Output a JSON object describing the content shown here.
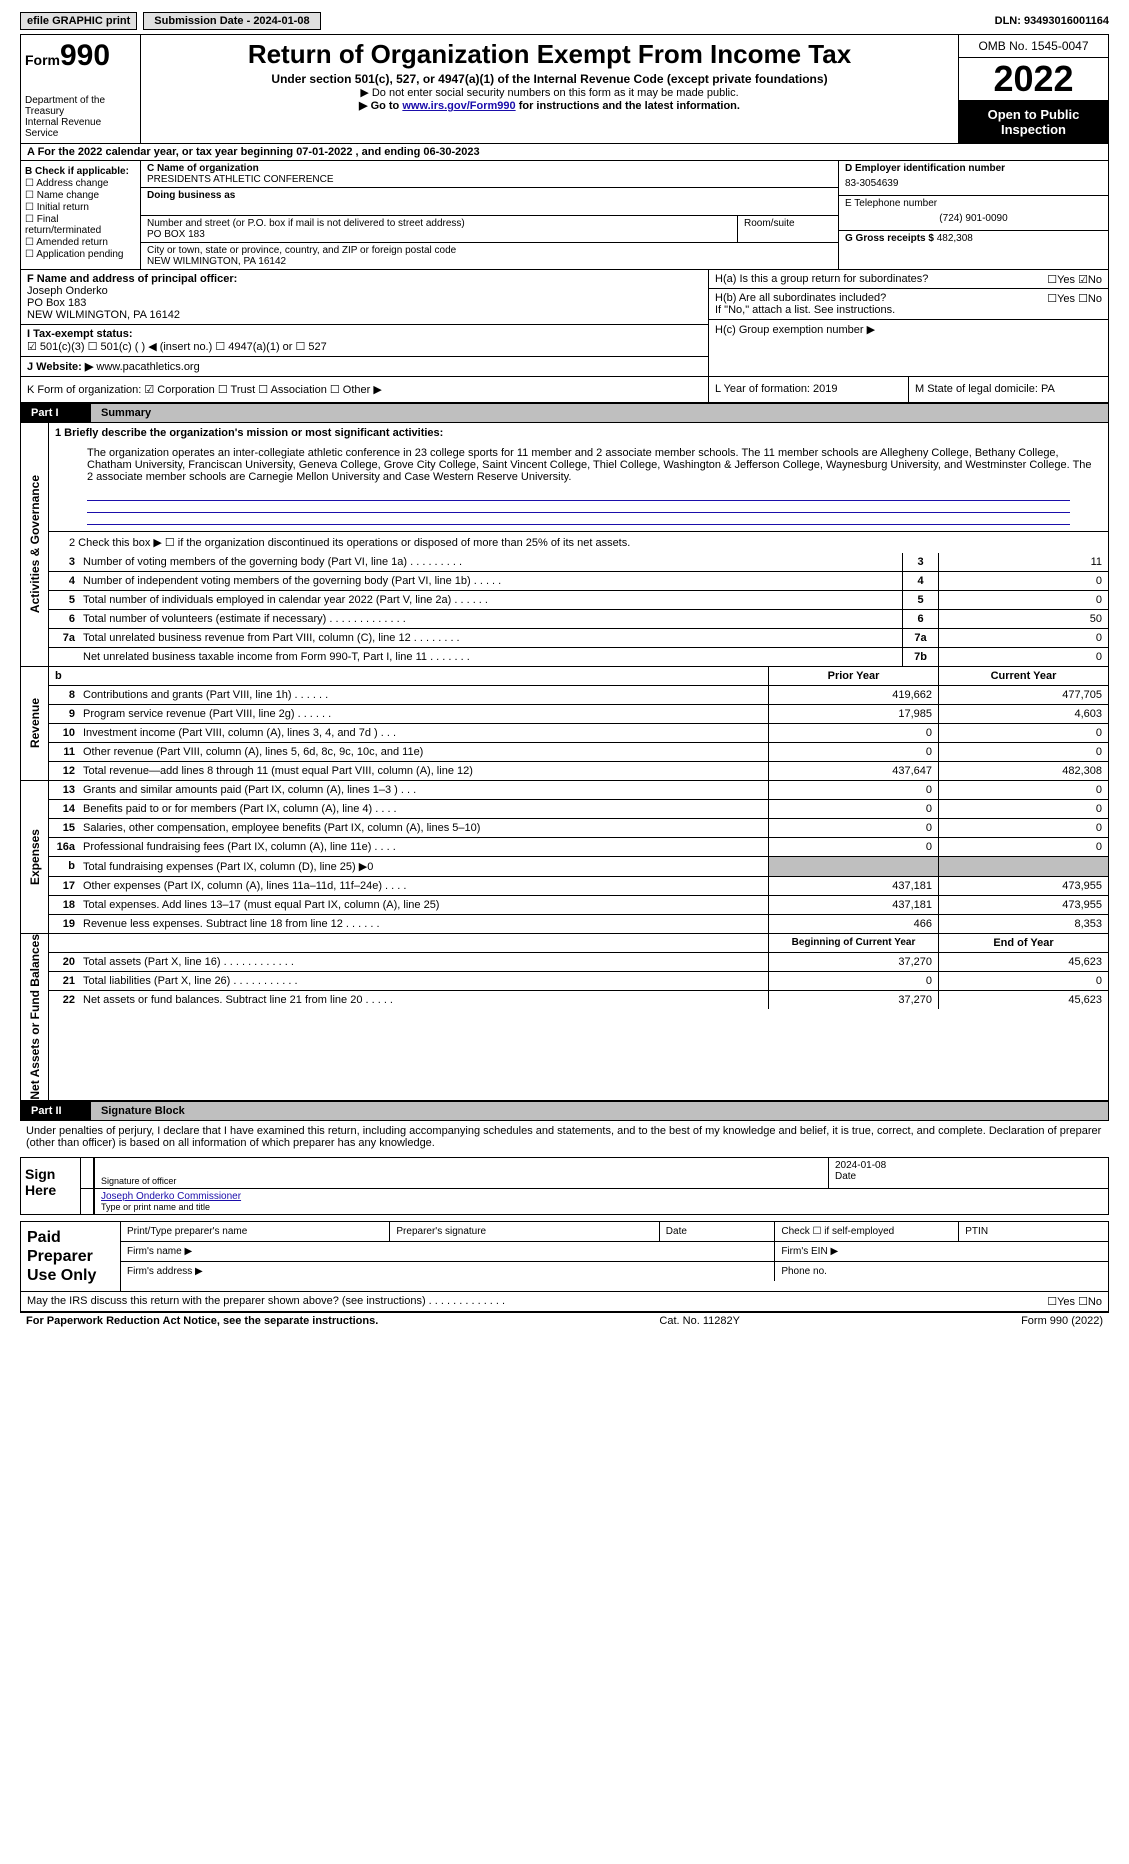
{
  "topbar": {
    "efile": "efile GRAPHIC print",
    "submission_label": "Submission Date - 2024-01-08",
    "dln": "DLN: 93493016001164"
  },
  "header": {
    "form_word": "Form",
    "form_num": "990",
    "title": "Return of Organization Exempt From Income Tax",
    "subtitle": "Under section 501(c), 527, or 4947(a)(1) of the Internal Revenue Code (except private foundations)",
    "note1": "▶ Do not enter social security numbers on this form as it may be made public.",
    "goto_pre": "▶ Go to ",
    "goto_link": "www.irs.gov/Form990",
    "goto_post": " for instructions and the latest information.",
    "dept": "Department of the Treasury\nInternal Revenue Service",
    "omb": "OMB No. 1545-0047",
    "year": "2022",
    "open_pub": "Open to Public Inspection"
  },
  "row_a": "A For the 2022 calendar year, or tax year beginning 07-01-2022    , and ending 06-30-2023",
  "col_b": {
    "hdr": "B Check if applicable:",
    "items": [
      "☐ Address change",
      "☐ Name change",
      "☐ Initial return",
      "☐ Final return/terminated",
      "☐ Amended return",
      "☐ Application pending"
    ]
  },
  "col_c": {
    "name_lab": "C Name of organization",
    "name_val": "PRESIDENTS ATHLETIC CONFERENCE",
    "dba_lab": "Doing business as",
    "street_lab": "Number and street (or P.O. box if mail is not delivered to street address)",
    "street_val": "PO BOX 183",
    "room_lab": "Room/suite",
    "city_lab": "City or town, state or province, country, and ZIP or foreign postal code",
    "city_val": "NEW WILMINGTON, PA  16142"
  },
  "col_d": {
    "ein_lab": "D Employer identification number",
    "ein_val": "83-3054639",
    "tel_lab": "E Telephone number",
    "tel_val": "(724) 901-0090",
    "gross_lab": "G Gross receipts $",
    "gross_val": "482,308"
  },
  "block_f": {
    "f_lab": "F Name and address of principal officer:",
    "f_name": "Joseph Onderko",
    "f_addr1": "PO Box 183",
    "f_addr2": "NEW WILMINGTON, PA  16142",
    "i_lab": "I   Tax-exempt status:",
    "i_opts": "☑ 501(c)(3)    ☐ 501(c) (  ) ◀ (insert no.)    ☐ 4947(a)(1) or    ☐ 527",
    "j_lab": "J   Website: ▶",
    "j_val": "www.pacathletics.org"
  },
  "block_h": {
    "ha_lab": "H(a)  Is this a group return for subordinates?",
    "ha_yesno": "☐Yes ☑No",
    "hb_lab": "H(b)  Are all subordinates included?",
    "hb_yesno": "☐Yes ☐No",
    "hb_note": "If \"No,\" attach a list. See instructions.",
    "hc_lab": "H(c)  Group exemption number ▶"
  },
  "row_k": {
    "k_lab": "K Form of organization:  ☑ Corporation  ☐ Trust  ☐ Association  ☐ Other ▶",
    "l_lab": "L Year of formation: 2019",
    "m_lab": "M State of legal domicile: PA"
  },
  "part1": {
    "label": "Part I",
    "title": "Summary"
  },
  "summary": {
    "mission_lab": "1  Briefly describe the organization's mission or most significant activities:",
    "mission": "The organization operates an inter-collegiate athletic conference in 23 college sports for 11 member and 2 associate member schools. The 11 member schools are Allegheny College, Bethany College, Chatham University, Franciscan University, Geneva College, Grove City College, Saint Vincent College, Thiel College, Washington & Jefferson College, Waynesburg University, and Westminster College. The 2 associate member schools are Carnegie Mellon University and Case Western Reserve University.",
    "line2": "2    Check this box ▶ ☐ if the organization discontinued its operations or disposed of more than 25% of its net assets.",
    "lines_gov": [
      {
        "n": "3",
        "d": "Number of voting members of the governing body (Part VI, line 1a)  .   .   .   .   .   .   .   .   .",
        "idx": "3",
        "v": "11"
      },
      {
        "n": "4",
        "d": "Number of independent voting members of the governing body (Part VI, line 1b)   .   .   .   .   .",
        "idx": "4",
        "v": "0"
      },
      {
        "n": "5",
        "d": "Total number of individuals employed in calendar year 2022 (Part V, line 2a)  .   .   .   .   .   .",
        "idx": "5",
        "v": "0"
      },
      {
        "n": "6",
        "d": "Total number of volunteers (estimate if necessary)  .   .   .   .   .   .   .   .   .   .   .   .   .",
        "idx": "6",
        "v": "50"
      },
      {
        "n": "7a",
        "d": "Total unrelated business revenue from Part VIII, column (C), line 12   .   .   .   .   .   .   .   .",
        "idx": "7a",
        "v": "0"
      },
      {
        "n": "",
        "d": "Net unrelated business taxable income from Form 990-T, Part I, line 11   .   .   .   .   .   .   .",
        "idx": "7b",
        "v": "0"
      }
    ],
    "hdr_b": "b",
    "hdr_prior": "Prior Year",
    "hdr_curr": "Current Year",
    "lines_rev": [
      {
        "n": "8",
        "d": "Contributions and grants (Part VIII, line 1h)   .   .   .   .   .   .",
        "p": "419,662",
        "c": "477,705"
      },
      {
        "n": "9",
        "d": "Program service revenue (Part VIII, line 2g)   .   .   .   .   .   .",
        "p": "17,985",
        "c": "4,603"
      },
      {
        "n": "10",
        "d": "Investment income (Part VIII, column (A), lines 3, 4, and 7d )   .   .   .",
        "p": "0",
        "c": "0"
      },
      {
        "n": "11",
        "d": "Other revenue (Part VIII, column (A), lines 5, 6d, 8c, 9c, 10c, and 11e)",
        "p": "0",
        "c": "0"
      },
      {
        "n": "12",
        "d": "Total revenue—add lines 8 through 11 (must equal Part VIII, column (A), line 12)",
        "p": "437,647",
        "c": "482,308"
      }
    ],
    "lines_exp": [
      {
        "n": "13",
        "d": "Grants and similar amounts paid (Part IX, column (A), lines 1–3 )  .   .   .",
        "p": "0",
        "c": "0"
      },
      {
        "n": "14",
        "d": "Benefits paid to or for members (Part IX, column (A), line 4)   .   .   .   .",
        "p": "0",
        "c": "0"
      },
      {
        "n": "15",
        "d": "Salaries, other compensation, employee benefits (Part IX, column (A), lines 5–10)",
        "p": "0",
        "c": "0"
      },
      {
        "n": "16a",
        "d": "Professional fundraising fees (Part IX, column (A), line 11e)  .   .   .   .",
        "p": "0",
        "c": "0"
      },
      {
        "n": "b",
        "d": "Total fundraising expenses (Part IX, column (D), line 25) ▶0",
        "p": "",
        "c": "",
        "gray": true
      },
      {
        "n": "17",
        "d": "Other expenses (Part IX, column (A), lines 11a–11d, 11f–24e)   .   .   .   .",
        "p": "437,181",
        "c": "473,955"
      },
      {
        "n": "18",
        "d": "Total expenses. Add lines 13–17 (must equal Part IX, column (A), line 25)",
        "p": "437,181",
        "c": "473,955"
      },
      {
        "n": "19",
        "d": "Revenue less expenses. Subtract line 18 from line 12   .   .   .   .   .   .",
        "p": "466",
        "c": "8,353"
      }
    ],
    "hdr_beg": "Beginning of Current Year",
    "hdr_end": "End of Year",
    "lines_net": [
      {
        "n": "20",
        "d": "Total assets (Part X, line 16)  .   .   .   .   .   .   .   .   .   .   .   .",
        "p": "37,270",
        "c": "45,623"
      },
      {
        "n": "21",
        "d": "Total liabilities (Part X, line 26)  .   .   .   .   .   .   .   .   .   .   .",
        "p": "0",
        "c": "0"
      },
      {
        "n": "22",
        "d": "Net assets or fund balances. Subtract line 21 from line 20  .   .   .   .   .",
        "p": "37,270",
        "c": "45,623"
      }
    ],
    "vlabels": {
      "gov": "Activities & Governance",
      "rev": "Revenue",
      "exp": "Expenses",
      "net": "Net Assets or Fund Balances"
    }
  },
  "part2": {
    "label": "Part II",
    "title": "Signature Block"
  },
  "sig": {
    "decl": "Under penalties of perjury, I declare that I have examined this return, including accompanying schedules and statements, and to the best of my knowledge and belief, it is true, correct, and complete. Declaration of preparer (other than officer) is based on all information of which preparer has any knowledge.",
    "sign_here": "Sign Here",
    "sig_off": "Signature of officer",
    "date_val": "2024-01-08",
    "date_lab": "Date",
    "name_val": "Joseph Onderko  Commissioner",
    "name_lab": "Type or print name and title"
  },
  "paid": {
    "label": "Paid Preparer Use Only",
    "h1": "Print/Type preparer's name",
    "h2": "Preparer's signature",
    "h3": "Date",
    "h4": "Check ☐ if self-employed",
    "h5": "PTIN",
    "r2a": "Firm's name   ▶",
    "r2b": "Firm's EIN ▶",
    "r3a": "Firm's address ▶",
    "r3b": "Phone no."
  },
  "footer": {
    "discuss": "May the IRS discuss this return with the preparer shown above? (see instructions)   .   .   .   .   .   .   .   .   .   .   .   .   .",
    "yesno": "☐Yes ☐No",
    "pra": "For Paperwork Reduction Act Notice, see the separate instructions.",
    "cat": "Cat. No. 11282Y",
    "form": "Form 990 (2022)"
  }
}
